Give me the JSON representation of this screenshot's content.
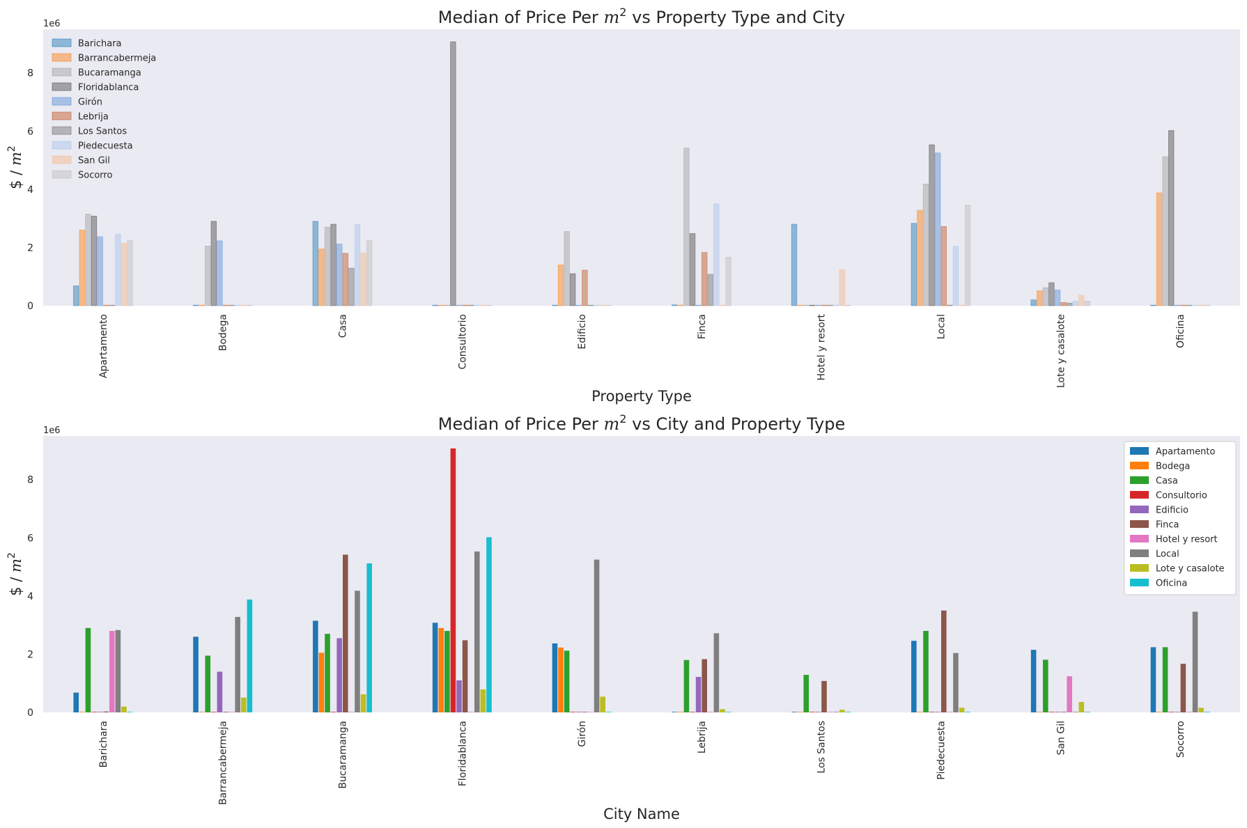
{
  "chart_data": [
    {
      "type": "bar",
      "title_prefix": "Median of Price Per ",
      "title_math": "m",
      "title_sup": "2",
      "title_suffix": " vs Property Type and City",
      "xlabel": "Property Type",
      "ylabel_prefix": "$ / ",
      "ylabel_math": "m",
      "ylabel_sup": "2",
      "offset_text": "1e6",
      "ylim": [
        0,
        9500000
      ],
      "yticks": [
        0,
        2000000,
        4000000,
        6000000,
        8000000
      ],
      "ytick_labels": [
        "0",
        "2",
        "4",
        "6",
        "8"
      ],
      "grid": false,
      "legend_position": "upper-left",
      "bar_opacity": 0.45,
      "colors": [
        "#1f77b4",
        "#ff7f0e",
        "#a0a0a0",
        "#4a4a4a",
        "#5a8fd6",
        "#c0571f",
        "#707070",
        "#a8c4ec",
        "#f5b98a",
        "#bdbdbd"
      ],
      "categories": [
        "Apartamento",
        "Bodega",
        "Casa",
        "Consultorio",
        "Edificio",
        "Finca",
        "Hotel y resort",
        "Local",
        "Lote y casalote",
        "Oficina"
      ],
      "series": [
        {
          "name": "Barichara",
          "values": [
            680000,
            0,
            2900000,
            0,
            0,
            30000,
            2800000,
            2830000,
            200000,
            0
          ]
        },
        {
          "name": "Barrancabermeja",
          "values": [
            2600000,
            0,
            1950000,
            0,
            1400000,
            0,
            0,
            3280000,
            510000,
            3880000
          ]
        },
        {
          "name": "Bucaramanga",
          "values": [
            3150000,
            2050000,
            2700000,
            0,
            2550000,
            5420000,
            0,
            4180000,
            620000,
            5120000
          ]
        },
        {
          "name": "Floridablanca",
          "values": [
            3080000,
            2900000,
            2800000,
            9070000,
            1100000,
            2480000,
            0,
            5530000,
            790000,
            6020000
          ]
        },
        {
          "name": "Girón",
          "values": [
            2370000,
            2230000,
            2120000,
            0,
            0,
            0,
            0,
            5250000,
            540000,
            0
          ]
        },
        {
          "name": "Lebrija",
          "values": [
            0,
            0,
            1800000,
            0,
            1220000,
            1830000,
            0,
            2720000,
            110000,
            0
          ]
        },
        {
          "name": "Los Santos",
          "values": [
            0,
            0,
            1290000,
            0,
            0,
            1080000,
            0,
            0,
            90000,
            0
          ]
        },
        {
          "name": "Piedecuesta",
          "values": [
            2460000,
            0,
            2800000,
            0,
            0,
            3500000,
            0,
            2040000,
            160000,
            0
          ]
        },
        {
          "name": "San Gil",
          "values": [
            2150000,
            0,
            1810000,
            0,
            0,
            0,
            1240000,
            0,
            360000,
            0
          ]
        },
        {
          "name": "Socorro",
          "values": [
            2240000,
            0,
            2240000,
            0,
            0,
            1670000,
            0,
            3460000,
            160000,
            0
          ]
        }
      ]
    },
    {
      "type": "bar",
      "title_prefix": "Median of Price Per ",
      "title_math": "m",
      "title_sup": "2",
      "title_suffix": " vs City and Property Type",
      "xlabel": "City Name",
      "ylabel_prefix": "$ / ",
      "ylabel_math": "m",
      "ylabel_sup": "2",
      "offset_text": "1e6",
      "ylim": [
        0,
        9500000
      ],
      "yticks": [
        0,
        2000000,
        4000000,
        6000000,
        8000000
      ],
      "ytick_labels": [
        "0",
        "2",
        "4",
        "6",
        "8"
      ],
      "grid": false,
      "legend_position": "upper-right",
      "bar_opacity": 1,
      "colors": [
        "#1f77b4",
        "#ff7f0e",
        "#2ca02c",
        "#d62728",
        "#9467bd",
        "#8c564b",
        "#e377c2",
        "#7f7f7f",
        "#bcbd22",
        "#17becf"
      ],
      "categories": [
        "Barichara",
        "Barrancabermeja",
        "Bucaramanga",
        "Floridablanca",
        "Girón",
        "Lebrija",
        "Los Santos",
        "Piedecuesta",
        "San Gil",
        "Socorro"
      ],
      "series": [
        {
          "name": "Apartamento",
          "values": [
            680000,
            2600000,
            3150000,
            3080000,
            2370000,
            0,
            0,
            2460000,
            2150000,
            2240000
          ]
        },
        {
          "name": "Bodega",
          "values": [
            0,
            0,
            2050000,
            2900000,
            2230000,
            0,
            0,
            0,
            0,
            0
          ]
        },
        {
          "name": "Casa",
          "values": [
            2900000,
            1950000,
            2700000,
            2800000,
            2120000,
            1800000,
            1290000,
            2800000,
            1810000,
            2240000
          ]
        },
        {
          "name": "Consultorio",
          "values": [
            0,
            0,
            0,
            9070000,
            0,
            0,
            0,
            0,
            0,
            0
          ]
        },
        {
          "name": "Edificio",
          "values": [
            0,
            1400000,
            2550000,
            1100000,
            0,
            1220000,
            0,
            0,
            0,
            0
          ]
        },
        {
          "name": "Finca",
          "values": [
            30000,
            0,
            5420000,
            2480000,
            0,
            1830000,
            1080000,
            3500000,
            0,
            1670000
          ]
        },
        {
          "name": "Hotel y resort",
          "values": [
            2800000,
            0,
            0,
            0,
            0,
            0,
            0,
            0,
            1240000,
            0
          ]
        },
        {
          "name": "Local",
          "values": [
            2830000,
            3280000,
            4180000,
            5530000,
            5250000,
            2720000,
            0,
            2040000,
            0,
            3460000
          ]
        },
        {
          "name": "Lote y casalote",
          "values": [
            200000,
            510000,
            620000,
            790000,
            540000,
            110000,
            90000,
            160000,
            360000,
            160000
          ]
        },
        {
          "name": "Oficina",
          "values": [
            0,
            3880000,
            5120000,
            6020000,
            0,
            0,
            0,
            0,
            0,
            0
          ]
        }
      ]
    }
  ]
}
